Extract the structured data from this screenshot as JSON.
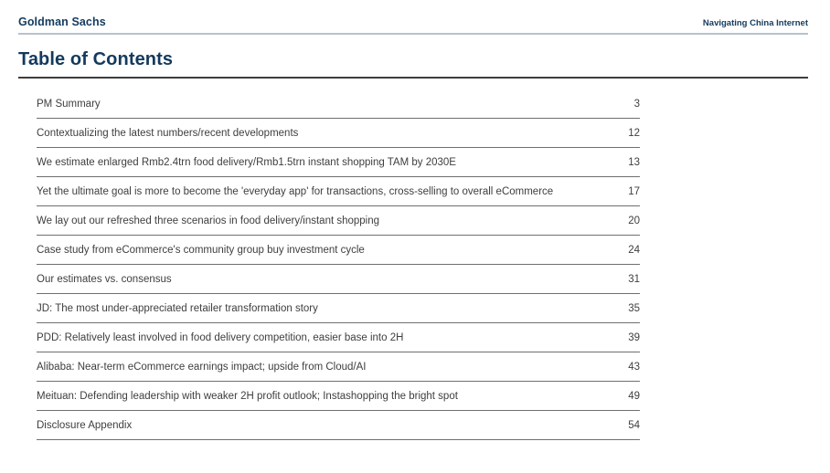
{
  "colors": {
    "brand_navy": "#133a5e",
    "header_rule": "#b6c2cc",
    "title_rule": "#3d3d3d",
    "row_rule": "#6f6f6f",
    "body_text": "#3e3e3e"
  },
  "header": {
    "brand": "Goldman Sachs",
    "doc_title": "Navigating China Internet"
  },
  "page": {
    "title": "Table of Contents"
  },
  "toc": {
    "entries": [
      {
        "label": "PM Summary",
        "page": "3"
      },
      {
        "label": "Contextualizing the latest numbers/recent developments",
        "page": "12"
      },
      {
        "label": "We estimate enlarged Rmb2.4trn food delivery/Rmb1.5trn instant shopping TAM by 2030E",
        "page": "13"
      },
      {
        "label": "Yet the ultimate goal is more to become the 'everyday app' for transactions, cross-selling to overall eCommerce",
        "page": "17"
      },
      {
        "label": "We lay out our refreshed three scenarios in food delivery/instant shopping",
        "page": "20"
      },
      {
        "label": "Case study from eCommerce's community group buy investment cycle",
        "page": "24"
      },
      {
        "label": "Our estimates vs. consensus",
        "page": "31"
      },
      {
        "label": "JD: The most under-appreciated retailer transformation story",
        "page": "35"
      },
      {
        "label": "PDD: Relatively least involved in food delivery competition, easier base into 2H",
        "page": "39"
      },
      {
        "label": "Alibaba: Near-term eCommerce earnings impact; upside from Cloud/AI",
        "page": "43"
      },
      {
        "label": "Meituan: Defending leadership with weaker 2H profit outlook; Instashopping the bright spot",
        "page": "49"
      },
      {
        "label": "Disclosure Appendix",
        "page": "54"
      }
    ]
  }
}
